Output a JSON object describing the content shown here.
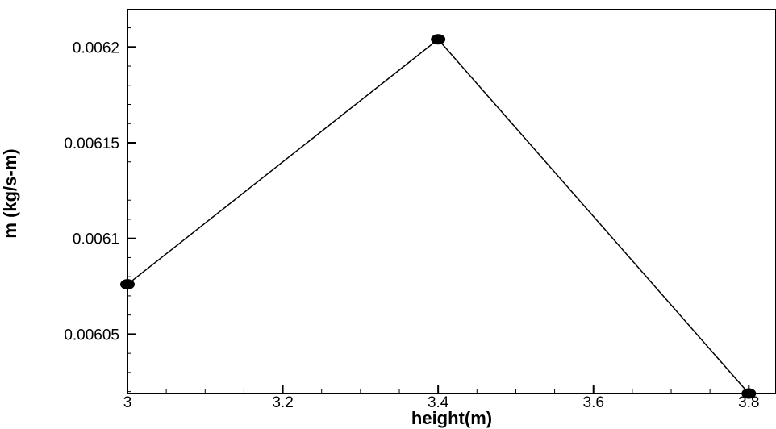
{
  "chart_data": {
    "type": "line",
    "xlabel": "height(m)",
    "ylabel": "m (kg/s-m)",
    "x": [
      3.0,
      3.4,
      3.8
    ],
    "series": [
      {
        "values": [
          0.006076,
          0.006204,
          0.006019
        ]
      }
    ],
    "xlim": [
      3.0,
      3.835
    ],
    "ylim": [
      0.006019,
      0.0062195
    ],
    "xticks": [
      3.0,
      3.2,
      3.4,
      3.6,
      3.8
    ],
    "xtick_labels": [
      "3",
      "3.2",
      "3.4",
      "3.6",
      "3.8"
    ],
    "yticks": [
      0.00605,
      0.0061,
      0.00615,
      0.0062
    ],
    "ytick_labels": [
      "0.00605",
      "0.0061",
      "0.00615",
      "0.0062"
    ],
    "x_minor_step": 0.05,
    "y_minor_step": 1e-05,
    "grid": false,
    "legend": "none",
    "line_color": "#000000",
    "marker": "filled-circle"
  }
}
